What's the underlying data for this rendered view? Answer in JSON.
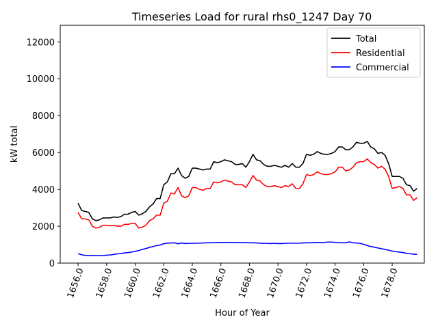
{
  "chart_data": {
    "type": "line",
    "title": "Timeseries Load for rural rhs0_1247  Day 70",
    "xlabel": "Hour of Year",
    "ylabel": "kW total",
    "xlim": [
      1654.75,
      1680.25
    ],
    "ylim": [
      0,
      12900
    ],
    "xticks": [
      1656,
      1658,
      1660,
      1662,
      1664,
      1666,
      1668,
      1670,
      1672,
      1674,
      1676,
      1678
    ],
    "xtick_labels": [
      "1656.0",
      "1658.0",
      "1660.0",
      "1662.0",
      "1664.0",
      "1666.0",
      "1668.0",
      "1670.0",
      "1672.0",
      "1674.0",
      "1676.0",
      "1678.0"
    ],
    "yticks": [
      0,
      2000,
      4000,
      6000,
      8000,
      10000,
      12000
    ],
    "ytick_labels": [
      "0",
      "2000",
      "4000",
      "6000",
      "8000",
      "10000",
      "12000"
    ],
    "grid": false,
    "legend_position": "top-right",
    "x_start": 1656,
    "x_step": 0.25,
    "series": [
      {
        "name": "Total",
        "color": "#000000",
        "values": [
          3250,
          2850,
          2800,
          2750,
          2400,
          2300,
          2350,
          2450,
          2450,
          2450,
          2500,
          2480,
          2520,
          2650,
          2650,
          2750,
          2800,
          2600,
          2680,
          2800,
          3050,
          3200,
          3500,
          3500,
          4250,
          4400,
          4850,
          4850,
          5150,
          4750,
          4600,
          4700,
          5150,
          5150,
          5100,
          5050,
          5100,
          5100,
          5500,
          5450,
          5500,
          5600,
          5550,
          5500,
          5350,
          5350,
          5400,
          5200,
          5500,
          5900,
          5600,
          5550,
          5350,
          5250,
          5250,
          5300,
          5250,
          5200,
          5300,
          5200,
          5400,
          5200,
          5200,
          5400,
          5900,
          5850,
          5900,
          6050,
          5950,
          5900,
          5900,
          5950,
          6050,
          6300,
          6300,
          6150,
          6150,
          6300,
          6550,
          6500,
          6500,
          6600,
          6300,
          6200,
          5950,
          6000,
          5850,
          5400,
          4700,
          4700,
          4700,
          4600,
          4250,
          4200,
          3900,
          4050
        ]
      },
      {
        "name": "Residential",
        "color": "#ff0000",
        "values": [
          2750,
          2400,
          2400,
          2350,
          2000,
          1900,
          1950,
          2050,
          2050,
          2020,
          2050,
          2000,
          2000,
          2100,
          2100,
          2150,
          2150,
          1900,
          1950,
          2050,
          2300,
          2400,
          2600,
          2600,
          3250,
          3350,
          3800,
          3750,
          4100,
          3650,
          3550,
          3650,
          4100,
          4100,
          4000,
          3950,
          4050,
          4050,
          4400,
          4350,
          4400,
          4500,
          4450,
          4400,
          4250,
          4250,
          4250,
          4100,
          4400,
          4750,
          4500,
          4450,
          4250,
          4150,
          4150,
          4200,
          4150,
          4100,
          4200,
          4150,
          4300,
          4050,
          4050,
          4300,
          4800,
          4750,
          4800,
          4950,
          4850,
          4800,
          4800,
          4850,
          4950,
          5200,
          5200,
          5000,
          5050,
          5200,
          5450,
          5500,
          5500,
          5650,
          5450,
          5350,
          5150,
          5250,
          5100,
          4700,
          4050,
          4100,
          4150,
          4050,
          3700,
          3700,
          3400,
          3550
        ]
      },
      {
        "name": "Commercial",
        "color": "#0000ff",
        "values": [
          520,
          450,
          420,
          410,
          400,
          400,
          400,
          410,
          430,
          440,
          470,
          500,
          520,
          550,
          570,
          600,
          640,
          680,
          740,
          790,
          850,
          900,
          950,
          980,
          1050,
          1080,
          1090,
          1100,
          1050,
          1090,
          1060,
          1070,
          1070,
          1080,
          1080,
          1090,
          1100,
          1100,
          1110,
          1110,
          1120,
          1120,
          1120,
          1120,
          1110,
          1110,
          1110,
          1110,
          1100,
          1100,
          1090,
          1080,
          1070,
          1070,
          1060,
          1070,
          1060,
          1060,
          1070,
          1080,
          1080,
          1080,
          1080,
          1090,
          1100,
          1100,
          1110,
          1120,
          1120,
          1120,
          1140,
          1140,
          1120,
          1110,
          1100,
          1100,
          1150,
          1100,
          1090,
          1070,
          1020,
          950,
          900,
          860,
          820,
          780,
          740,
          700,
          650,
          620,
          600,
          570,
          530,
          510,
          480,
          480
        ]
      }
    ]
  }
}
